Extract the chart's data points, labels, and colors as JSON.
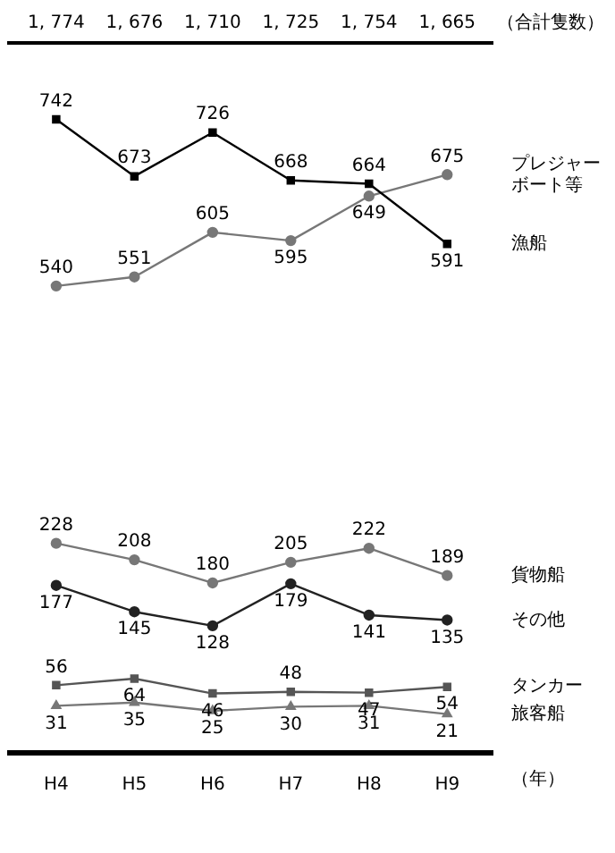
{
  "chart_data": {
    "type": "line",
    "xlabel": "（年）",
    "categories": [
      "H4",
      "H5",
      "H6",
      "H7",
      "H8",
      "H9"
    ],
    "series": [
      {
        "name": "漁船",
        "color": "#000000",
        "marker": "square",
        "values": [
          742,
          673,
          726,
          668,
          664,
          591
        ]
      },
      {
        "name": "プレジャーボート等",
        "color": "#777777",
        "marker": "circle",
        "values": [
          540,
          551,
          605,
          595,
          649,
          675
        ]
      },
      {
        "name": "貨物船",
        "color": "#777777",
        "marker": "circle",
        "values": [
          228,
          208,
          180,
          205,
          222,
          189
        ]
      },
      {
        "name": "その他",
        "color": "#222222",
        "marker": "circle",
        "values": [
          177,
          145,
          128,
          179,
          141,
          135
        ]
      },
      {
        "name": "タンカー",
        "color": "#555555",
        "marker": "square",
        "values": [
          56,
          64,
          46,
          48,
          47,
          54
        ]
      },
      {
        "name": "旅客船",
        "color": "#777777",
        "marker": "triangle",
        "values": [
          31,
          35,
          25,
          30,
          31,
          21
        ]
      }
    ],
    "tick_labels": "x",
    "grid": false,
    "legend": false,
    "data_labels": true,
    "annotations": [
      "1, 774",
      "1, 676",
      "1, 710",
      "1, 725",
      "1, 754",
      "1, 665",
      "（合計隻数）"
    ]
  }
}
